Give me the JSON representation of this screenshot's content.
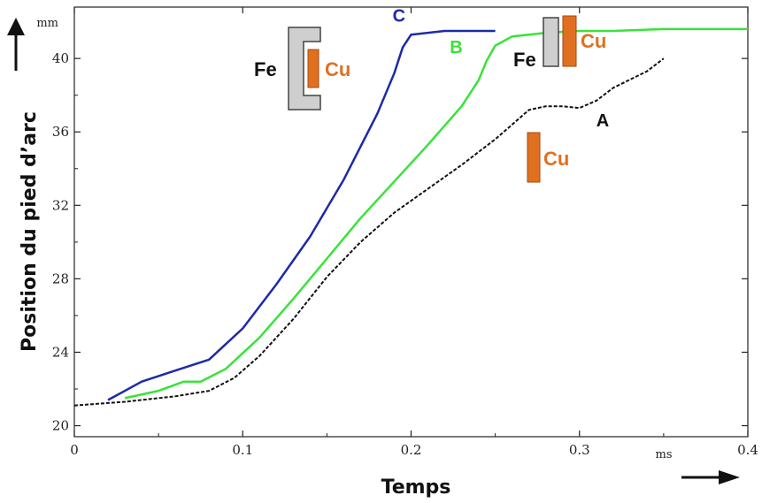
{
  "chart_data": {
    "type": "line",
    "xlabel": "Temps",
    "ylabel": "Position du pied d’arc",
    "x_unit": "ms",
    "y_unit": "mm",
    "xlim": [
      0,
      0.4
    ],
    "ylim": [
      19.4,
      42.8
    ],
    "x_ticks": [
      0,
      0.1,
      0.2,
      0.3,
      0.4
    ],
    "x_tick_labels": [
      "0",
      "0.1",
      "0.2",
      "0.3",
      "0.4"
    ],
    "y_ticks": [
      20,
      24,
      28,
      32,
      36,
      40
    ],
    "y_tick_labels": [
      "20",
      "24",
      "28",
      "32",
      "36",
      "40"
    ],
    "grid": false,
    "series": [
      {
        "name": "A",
        "color": "#111111",
        "dash": true,
        "points": [
          [
            0,
            21.1
          ],
          [
            0.03,
            21.3
          ],
          [
            0.06,
            21.6
          ],
          [
            0.08,
            21.9
          ],
          [
            0.095,
            22.6
          ],
          [
            0.11,
            23.8
          ],
          [
            0.13,
            25.8
          ],
          [
            0.15,
            28.1
          ],
          [
            0.17,
            30.0
          ],
          [
            0.19,
            31.6
          ],
          [
            0.21,
            32.9
          ],
          [
            0.23,
            34.2
          ],
          [
            0.25,
            35.6
          ],
          [
            0.26,
            36.4
          ],
          [
            0.27,
            37.2
          ],
          [
            0.28,
            37.4
          ],
          [
            0.29,
            37.4
          ],
          [
            0.3,
            37.3
          ],
          [
            0.31,
            37.7
          ],
          [
            0.32,
            38.4
          ],
          [
            0.34,
            39.3
          ],
          [
            0.35,
            40.0
          ]
        ]
      },
      {
        "name": "B",
        "color": "#39e339",
        "dash": false,
        "points": [
          [
            0.03,
            21.5
          ],
          [
            0.05,
            21.9
          ],
          [
            0.065,
            22.4
          ],
          [
            0.075,
            22.4
          ],
          [
            0.09,
            23.1
          ],
          [
            0.11,
            24.8
          ],
          [
            0.13,
            26.9
          ],
          [
            0.15,
            29.1
          ],
          [
            0.17,
            31.3
          ],
          [
            0.19,
            33.3
          ],
          [
            0.21,
            35.3
          ],
          [
            0.23,
            37.4
          ],
          [
            0.24,
            38.8
          ],
          [
            0.245,
            39.9
          ],
          [
            0.25,
            40.7
          ],
          [
            0.26,
            41.2
          ],
          [
            0.28,
            41.4
          ],
          [
            0.3,
            41.5
          ],
          [
            0.32,
            41.5
          ],
          [
            0.35,
            41.6
          ],
          [
            0.4,
            41.6
          ]
        ]
      },
      {
        "name": "C",
        "color": "#1d2aa8",
        "dash": false,
        "points": [
          [
            0.02,
            21.4
          ],
          [
            0.04,
            22.4
          ],
          [
            0.06,
            23.0
          ],
          [
            0.08,
            23.6
          ],
          [
            0.1,
            25.3
          ],
          [
            0.12,
            27.7
          ],
          [
            0.14,
            30.3
          ],
          [
            0.16,
            33.4
          ],
          [
            0.18,
            37.0
          ],
          [
            0.19,
            39.2
          ],
          [
            0.195,
            40.6
          ],
          [
            0.2,
            41.3
          ],
          [
            0.22,
            41.5
          ],
          [
            0.24,
            41.5
          ],
          [
            0.25,
            41.5
          ]
        ]
      }
    ],
    "series_labels": [
      {
        "text": "C",
        "x": 0.189,
        "y": 42.0,
        "color": "#1d2aa8"
      },
      {
        "text": "B",
        "x": 0.223,
        "y": 40.3,
        "color": "#39e339"
      },
      {
        "text": "A",
        "x": 0.31,
        "y": 36.3,
        "color": "#111111"
      }
    ],
    "insets": [
      {
        "id": "fe-cu-enclosed",
        "fe_label": "Fe",
        "cu_label": "Cu"
      },
      {
        "id": "fe-cu-adjacent",
        "fe_label": "Fe",
        "cu_label": "Cu"
      },
      {
        "id": "cu-alone",
        "cu_label": "Cu"
      }
    ],
    "colors": {
      "fe_fill": "#cfcfcf",
      "fe_stroke": "#444444",
      "cu_fill": "#e07020",
      "cu_text": "#e07020",
      "mat_text": "#111111"
    }
  }
}
